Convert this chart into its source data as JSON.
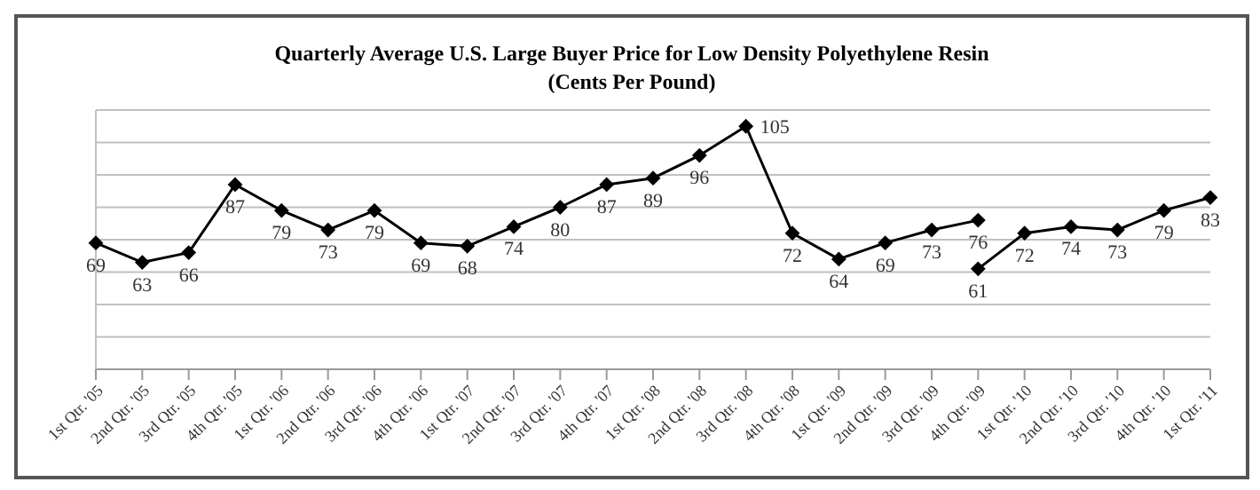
{
  "chart_data": {
    "type": "line",
    "title": "Quarterly Average U.S. Large Buyer Price for Low Density Polyethylene Resin",
    "subtitle": "(Cents Per Pound)",
    "categories": [
      "1st Qtr. '05",
      "2nd Qtr. '05",
      "3rd Qtr. '05",
      "4th Qtr. '05",
      "1st Qtr. '06",
      "2nd Qtr. '06",
      "3rd Qtr. '06",
      "4th Qtr. '06",
      "1st Qtr. '07",
      "2nd Qtr. '07",
      "3rd Qtr. '07",
      "4th Qtr. '07",
      "1st Qtr. '08",
      "2nd Qtr. '08",
      "3rd Qtr. '08",
      "4th Qtr. '08",
      "1st Qtr. '09",
      "2nd Qtr. '09",
      "3rd Qtr. '09",
      "4th Qtr. '09",
      "1st Qtr. '10",
      "2nd Qtr. '10",
      "3rd Qtr. '10",
      "4th Qtr. '10",
      "1st Qtr. '11"
    ],
    "series": [
      {
        "color": "#000000",
        "values": [
          69,
          63,
          66,
          87,
          79,
          73,
          79,
          69,
          68,
          74,
          80,
          87,
          89,
          96,
          105,
          72,
          64,
          69,
          73,
          76,
          null,
          null,
          null,
          null,
          null
        ]
      },
      {
        "color": "#000000",
        "values": [
          null,
          null,
          null,
          null,
          null,
          null,
          null,
          null,
          null,
          null,
          null,
          null,
          null,
          null,
          null,
          null,
          null,
          null,
          null,
          61,
          72,
          74,
          73,
          79,
          83
        ]
      }
    ],
    "ylim": [
      30,
      110
    ],
    "yticks": [
      {
        "value": 30,
        "label": null
      },
      {
        "value": 40,
        "label": null
      },
      {
        "value": 50,
        "label": null
      },
      {
        "value": 60,
        "label": null
      },
      {
        "value": 70,
        "label": null
      },
      {
        "value": 80,
        "label": null
      },
      {
        "value": 90,
        "label": null
      },
      {
        "value": 100,
        "label": null
      },
      {
        "value": 110,
        "label": null
      }
    ],
    "grid": "y",
    "marker": "diamond",
    "line_style": "solid",
    "data_labels": true,
    "legend": false
  }
}
